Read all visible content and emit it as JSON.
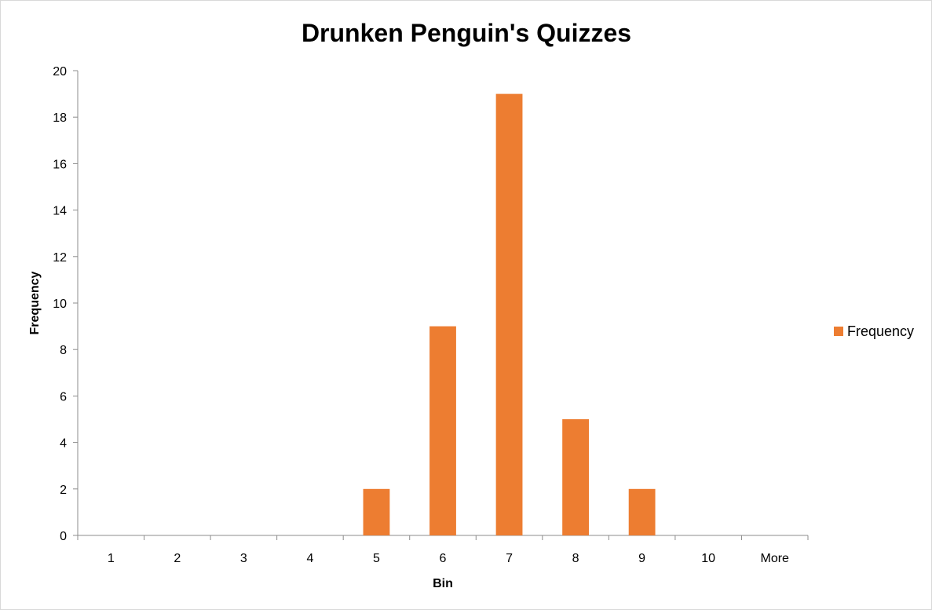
{
  "chart_data": {
    "type": "bar",
    "title": "Drunken Penguin's Quizzes",
    "xlabel": "Bin",
    "ylabel": "Frequency",
    "categories": [
      "1",
      "2",
      "3",
      "4",
      "5",
      "6",
      "7",
      "8",
      "9",
      "10",
      "More"
    ],
    "series": [
      {
        "name": "Frequency",
        "values": [
          0,
          0,
          0,
          0,
          2,
          9,
          19,
          5,
          2,
          0,
          0
        ],
        "color": "#ED7D31"
      }
    ],
    "ylim": [
      0,
      20
    ],
    "yticks": [
      0,
      2,
      4,
      6,
      8,
      10,
      12,
      14,
      16,
      18,
      20
    ],
    "grid": false,
    "legend": "right"
  }
}
